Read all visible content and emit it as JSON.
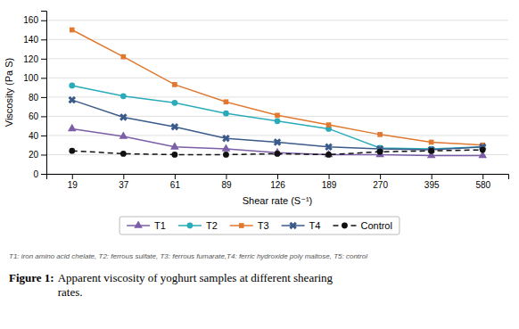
{
  "chart_data": {
    "type": "line",
    "x_label": "Shear rate (S⁻¹)",
    "y_label": "Viscosity (Pa S)",
    "categories": [
      "19",
      "37",
      "61",
      "89",
      "126",
      "189",
      "270",
      "395",
      "580"
    ],
    "series": [
      {
        "name": "T1",
        "color": "#7B5EA7",
        "marker": "triangle",
        "line_style": "solid",
        "values": [
          47,
          39,
          28,
          26,
          22,
          20,
          20,
          19,
          19
        ]
      },
      {
        "name": "T2",
        "color": "#2AABBA",
        "marker": "circle",
        "line_style": "solid",
        "values": [
          92,
          81,
          74,
          63,
          55,
          47,
          27,
          26,
          28
        ]
      },
      {
        "name": "T3",
        "color": "#E07830",
        "marker": "square",
        "line_style": "solid",
        "values": [
          150,
          122,
          93,
          75,
          61,
          51,
          41,
          33,
          30
        ]
      },
      {
        "name": "T4",
        "color": "#3A5A8A",
        "marker": "x",
        "line_style": "solid",
        "values": [
          77,
          59,
          49,
          37,
          33,
          28,
          26,
          25,
          28
        ]
      },
      {
        "name": "Control",
        "color": "#111111",
        "marker": "circle",
        "line_style": "dashed",
        "values": [
          24,
          21,
          20,
          20,
          21,
          20,
          23,
          24,
          25
        ]
      }
    ],
    "ylim": [
      0,
      170
    ],
    "yticks": [
      0,
      20,
      40,
      60,
      80,
      100,
      120,
      140,
      160
    ],
    "grid": true,
    "legend": "bottom",
    "annotations": [
      "T1: iron amino acid chelate, T2: ferrous sulfate, T3: ferrous fumarate,T4: ferric hydroxide poly maltose, T5: control",
      "Figure 1:",
      "Apparent viscosity of yoghurt samples at different shearing\nrates."
    ]
  }
}
